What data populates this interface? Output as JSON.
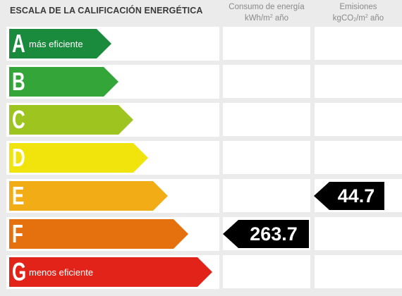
{
  "header": {
    "title": "ESCALA DE LA CALIFICACIÓN ENERGÉTICA",
    "consumption": {
      "line1": "Consumo de energía",
      "unit_a": "kWh/m",
      "unit_sup": "2",
      "unit_b": " año"
    },
    "emissions": {
      "line1": "Emisiones",
      "unit_a": "kgCO",
      "unit_sub": "2",
      "unit_b": "/m",
      "unit_sup": "2",
      "unit_c": " año"
    }
  },
  "ratings": [
    {
      "letter": "A",
      "desc": "más eficiente",
      "color": "#1a8a3c"
    },
    {
      "letter": "B",
      "desc": "",
      "color": "#33a539"
    },
    {
      "letter": "C",
      "desc": "",
      "color": "#9dc41f"
    },
    {
      "letter": "D",
      "desc": "",
      "color": "#f1e40d"
    },
    {
      "letter": "E",
      "desc": "",
      "color": "#f2ad16"
    },
    {
      "letter": "F",
      "desc": "",
      "color": "#e5700e"
    },
    {
      "letter": "G",
      "desc": "menos eficiente",
      "color": "#e2231a"
    }
  ],
  "indicators": {
    "emissions": {
      "value": "44.7",
      "rating": "E"
    },
    "consumption": {
      "value": "263.7",
      "rating": "F"
    }
  }
}
